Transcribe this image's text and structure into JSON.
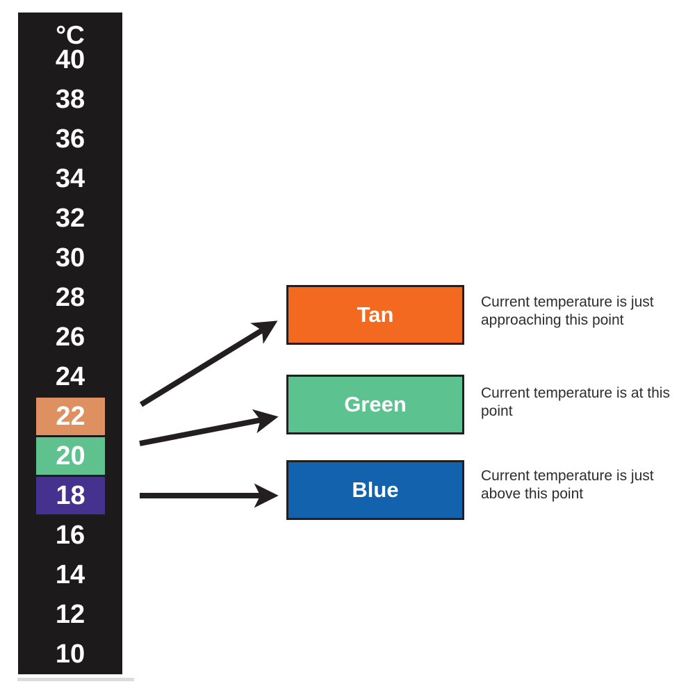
{
  "strip": {
    "unit_label": "°C",
    "background": "#1d1a1b",
    "text_color": "#ffffff",
    "scale": [
      {
        "label": "40"
      },
      {
        "label": "38"
      },
      {
        "label": "36"
      },
      {
        "label": "34"
      },
      {
        "label": "32"
      },
      {
        "label": "30"
      },
      {
        "label": "28"
      },
      {
        "label": "26"
      },
      {
        "label": "24"
      },
      {
        "label": "22",
        "bg": "#de9060",
        "name": "tan"
      },
      {
        "label": "20",
        "bg": "#5fc28e",
        "name": "green"
      },
      {
        "label": "18",
        "bg": "#45318e",
        "name": "purple"
      },
      {
        "label": "16"
      },
      {
        "label": "14"
      },
      {
        "label": "12"
      },
      {
        "label": "10"
      }
    ]
  },
  "legend": [
    {
      "label": "Tan",
      "color": "#f2691f",
      "description": "Current temperature is just approaching this point"
    },
    {
      "label": "Green",
      "color": "#5cc28f",
      "description": "Current temperature is at this point"
    },
    {
      "label": "Blue",
      "color": "#1362ae",
      "description": "Current temperature is just above this point"
    }
  ],
  "arrows": {
    "color": "#231f20"
  }
}
